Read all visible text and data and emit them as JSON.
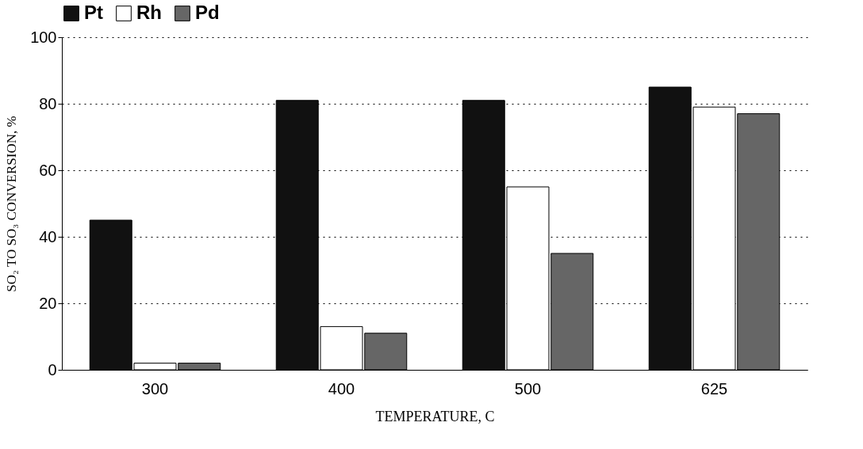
{
  "chart_data": {
    "type": "bar",
    "xlabel": "TEMPERATURE, C",
    "ylabel": "SO₂ TO SO₃ CONVERSION, %",
    "categories": [
      "300",
      "400",
      "500",
      "625"
    ],
    "series": [
      {
        "name": "Pt",
        "color": "#111111",
        "values": [
          45,
          81,
          81,
          85
        ]
      },
      {
        "name": "Rh",
        "color": "#ffffff",
        "values": [
          2,
          13,
          55,
          79
        ]
      },
      {
        "name": "Pd",
        "color": "#666666",
        "values": [
          2,
          11,
          35,
          77
        ]
      }
    ],
    "ylim": [
      0,
      100
    ],
    "yticks": [
      0,
      20,
      40,
      60,
      80,
      100
    ],
    "grid": "y",
    "legend": "top"
  }
}
